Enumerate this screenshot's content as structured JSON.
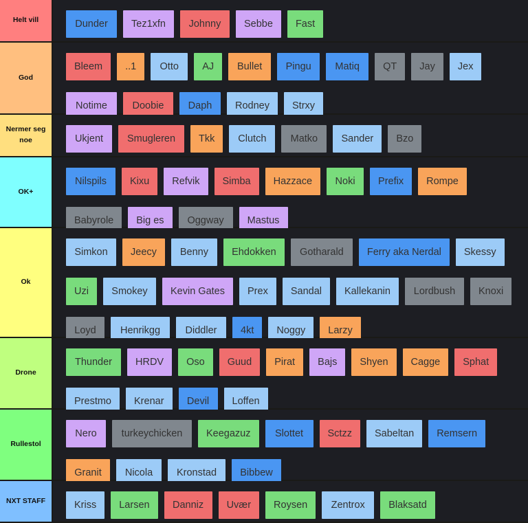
{
  "colors": {
    "blue": "#4a96f2",
    "lightblue": "#9ccbf7",
    "red": "#f06e6e",
    "purple": "#cfa6f7",
    "green": "#79dc7c",
    "orange": "#f9a45a",
    "gray": "#80878e"
  },
  "tiers": [
    {
      "label": "Helt vill",
      "color": "#ff7f7f",
      "height": 62,
      "items": [
        {
          "text": "Dunder",
          "c": "blue",
          "w": 74
        },
        {
          "text": "Tez1xfn",
          "c": "purple",
          "w": 74
        },
        {
          "text": "Johnny",
          "c": "red",
          "w": 72
        },
        {
          "text": "Sebbe",
          "c": "purple",
          "w": 65
        },
        {
          "text": "Fast",
          "c": "green",
          "w": 50
        }
      ]
    },
    {
      "label": "God",
      "color": "#ffbf7f",
      "height": 105,
      "items": [
        {
          "text": "Bleem",
          "c": "red",
          "w": 65
        },
        {
          "text": "..1",
          "c": "orange",
          "w": 38
        },
        {
          "text": "Otto",
          "c": "lightblue",
          "w": 54
        },
        {
          "text": "AJ",
          "c": "green",
          "w": 40
        },
        {
          "text": "Bullet",
          "c": "orange",
          "w": 62
        },
        {
          "text": "Pingu",
          "c": "blue",
          "w": 62
        },
        {
          "text": "Matiq",
          "c": "blue",
          "w": 62
        },
        {
          "text": "QT",
          "c": "gray",
          "w": 42
        },
        {
          "text": "Jay",
          "c": "gray",
          "w": 44
        },
        {
          "text": "Jex",
          "c": "lightblue",
          "w": 44
        },
        {
          "text": "Notime",
          "c": "purple",
          "w": 74
        },
        {
          "text": "Doobie",
          "c": "red",
          "w": 73
        },
        {
          "text": "Daph",
          "c": "blue",
          "w": 60
        },
        {
          "text": "Rodney",
          "c": "lightblue",
          "w": 74
        },
        {
          "text": "Strxy",
          "c": "lightblue",
          "w": 56
        }
      ]
    },
    {
      "label": "Nermer seg noe",
      "color": "#ffdf7f",
      "height": 62,
      "items": [
        {
          "text": "Ukjent",
          "c": "purple",
          "w": 67
        },
        {
          "text": "Smugleren",
          "c": "red",
          "w": 96
        },
        {
          "text": "Tkk",
          "c": "orange",
          "w": 46
        },
        {
          "text": "Clutch",
          "c": "lightblue",
          "w": 67
        },
        {
          "text": "Matko",
          "c": "gray",
          "w": 66
        },
        {
          "text": "Sander",
          "c": "lightblue",
          "w": 71
        },
        {
          "text": "Bzo",
          "c": "gray",
          "w": 48
        }
      ]
    },
    {
      "label": "OK+",
      "color": "#7fffff",
      "height": 103,
      "items": [
        {
          "text": "Nilspils",
          "c": "blue",
          "w": 72
        },
        {
          "text": "Kixu",
          "c": "red",
          "w": 52
        },
        {
          "text": "Refvik",
          "c": "purple",
          "w": 63
        },
        {
          "text": "Simba",
          "c": "red",
          "w": 65
        },
        {
          "text": "Hazzace",
          "c": "orange",
          "w": 78
        },
        {
          "text": "Noki",
          "c": "green",
          "w": 54
        },
        {
          "text": "Prefix",
          "c": "blue",
          "w": 60
        },
        {
          "text": "Rompe",
          "c": "orange",
          "w": 70
        },
        {
          "text": "Babyrole",
          "c": "gray",
          "w": 81
        },
        {
          "text": "Big es",
          "c": "purple",
          "w": 64
        },
        {
          "text": "Oggway",
          "c": "gray",
          "w": 79
        },
        {
          "text": "Mastus",
          "c": "purple",
          "w": 71
        }
      ]
    },
    {
      "label": "Ok",
      "color": "#ffff7f",
      "height": 160,
      "items": [
        {
          "text": "Simkon",
          "c": "lightblue",
          "w": 73
        },
        {
          "text": "Jeecy",
          "c": "orange",
          "w": 59
        },
        {
          "text": "Benny",
          "c": "lightblue",
          "w": 67
        },
        {
          "text": "Ehdokken",
          "c": "green",
          "w": 89
        },
        {
          "text": "Gotharald",
          "c": "gray",
          "w": 90
        },
        {
          "text": "Ferry aka Nerdal",
          "c": "blue",
          "w": 132
        },
        {
          "text": "Skessy",
          "c": "lightblue",
          "w": 67
        },
        {
          "text": "Uzi",
          "c": "green",
          "w": 45
        },
        {
          "text": "Smokey",
          "c": "lightblue",
          "w": 77
        },
        {
          "text": "Kevin Gates",
          "c": "purple",
          "w": 100
        },
        {
          "text": "Prex",
          "c": "lightblue",
          "w": 52
        },
        {
          "text": "Sandal",
          "c": "lightblue",
          "w": 68
        },
        {
          "text": "Kallekanin",
          "c": "lightblue",
          "w": 91
        },
        {
          "text": "Lordbush",
          "c": "gray",
          "w": 86
        },
        {
          "text": "Knoxi",
          "c": "gray",
          "w": 60
        },
        {
          "text": "Loyd",
          "c": "gray",
          "w": 56
        },
        {
          "text": "Henrikgg",
          "c": "lightblue",
          "w": 86
        },
        {
          "text": "Diddler",
          "c": "lightblue",
          "w": 73
        },
        {
          "text": "4kt",
          "c": "blue",
          "w": 42
        },
        {
          "text": "Noggy",
          "c": "lightblue",
          "w": 65
        },
        {
          "text": "Larzy",
          "c": "orange",
          "w": 58
        }
      ]
    },
    {
      "label": "Drone",
      "color": "#bfff7f",
      "height": 104,
      "items": [
        {
          "text": "Thunder",
          "c": "green",
          "w": 80
        },
        {
          "text": "HRDV",
          "c": "purple",
          "w": 63
        },
        {
          "text": "Oso",
          "c": "green",
          "w": 49
        },
        {
          "text": "Guud",
          "c": "red",
          "w": 56
        },
        {
          "text": "Pirat",
          "c": "orange",
          "w": 54
        },
        {
          "text": "Bajs",
          "c": "purple",
          "w": 50
        },
        {
          "text": "Shyen",
          "c": "orange",
          "w": 63
        },
        {
          "text": "Cagge",
          "c": "orange",
          "w": 66
        },
        {
          "text": "Sphat",
          "c": "red",
          "w": 60
        },
        {
          "text": "Prestmo",
          "c": "lightblue",
          "w": 78
        },
        {
          "text": "Krenar",
          "c": "lightblue",
          "w": 67
        },
        {
          "text": "Devil",
          "c": "blue",
          "w": 57
        },
        {
          "text": "Loffen",
          "c": "lightblue",
          "w": 64
        }
      ]
    },
    {
      "label": "Rullestol",
      "color": "#7fff7f",
      "height": 104,
      "items": [
        {
          "text": "Nero",
          "c": "purple",
          "w": 58
        },
        {
          "text": "turkeychicken",
          "c": "gray",
          "w": 116
        },
        {
          "text": "Keegazuz",
          "c": "green",
          "w": 87
        },
        {
          "text": "Slottet",
          "c": "blue",
          "w": 70
        },
        {
          "text": "Sctzz",
          "c": "red",
          "w": 58
        },
        {
          "text": "Sabeltan",
          "c": "lightblue",
          "w": 81
        },
        {
          "text": "Remsern",
          "c": "blue",
          "w": 81
        },
        {
          "text": "Granit",
          "c": "orange",
          "w": 64
        },
        {
          "text": "Nicola",
          "c": "lightblue",
          "w": 66
        },
        {
          "text": "Kronstad",
          "c": "lightblue",
          "w": 84
        },
        {
          "text": "Bibbew",
          "c": "blue",
          "w": 72
        }
      ]
    },
    {
      "label": "NXT STAFF",
      "color": "#7fbfff",
      "height": 61,
      "items": [
        {
          "text": "Kriss",
          "c": "lightblue",
          "w": 56
        },
        {
          "text": "Larsen",
          "c": "green",
          "w": 66
        },
        {
          "text": "Danniz",
          "c": "red",
          "w": 70
        },
        {
          "text": "Uvær",
          "c": "red",
          "w": 58
        },
        {
          "text": "Roysen",
          "c": "green",
          "w": 70
        },
        {
          "text": "Zentrox",
          "c": "lightblue",
          "w": 76
        },
        {
          "text": "Blaksatd",
          "c": "green",
          "w": 78
        }
      ]
    }
  ]
}
